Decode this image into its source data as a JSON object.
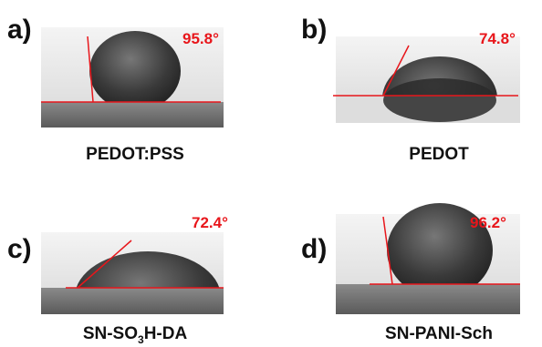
{
  "panels": [
    {
      "label": "a)",
      "angle": "95.8°",
      "caption": [
        "PEDOT:PSS"
      ]
    },
    {
      "label": "b)",
      "angle": "74.8°",
      "caption": [
        "PEDOT"
      ]
    },
    {
      "label": "c)",
      "angle": "72.4°",
      "caption": [
        "SN-SO",
        "3",
        "H-DA"
      ]
    },
    {
      "label": "d)",
      "angle": "96.2°",
      "caption": [
        "SN-PANI-Sch"
      ]
    }
  ]
}
